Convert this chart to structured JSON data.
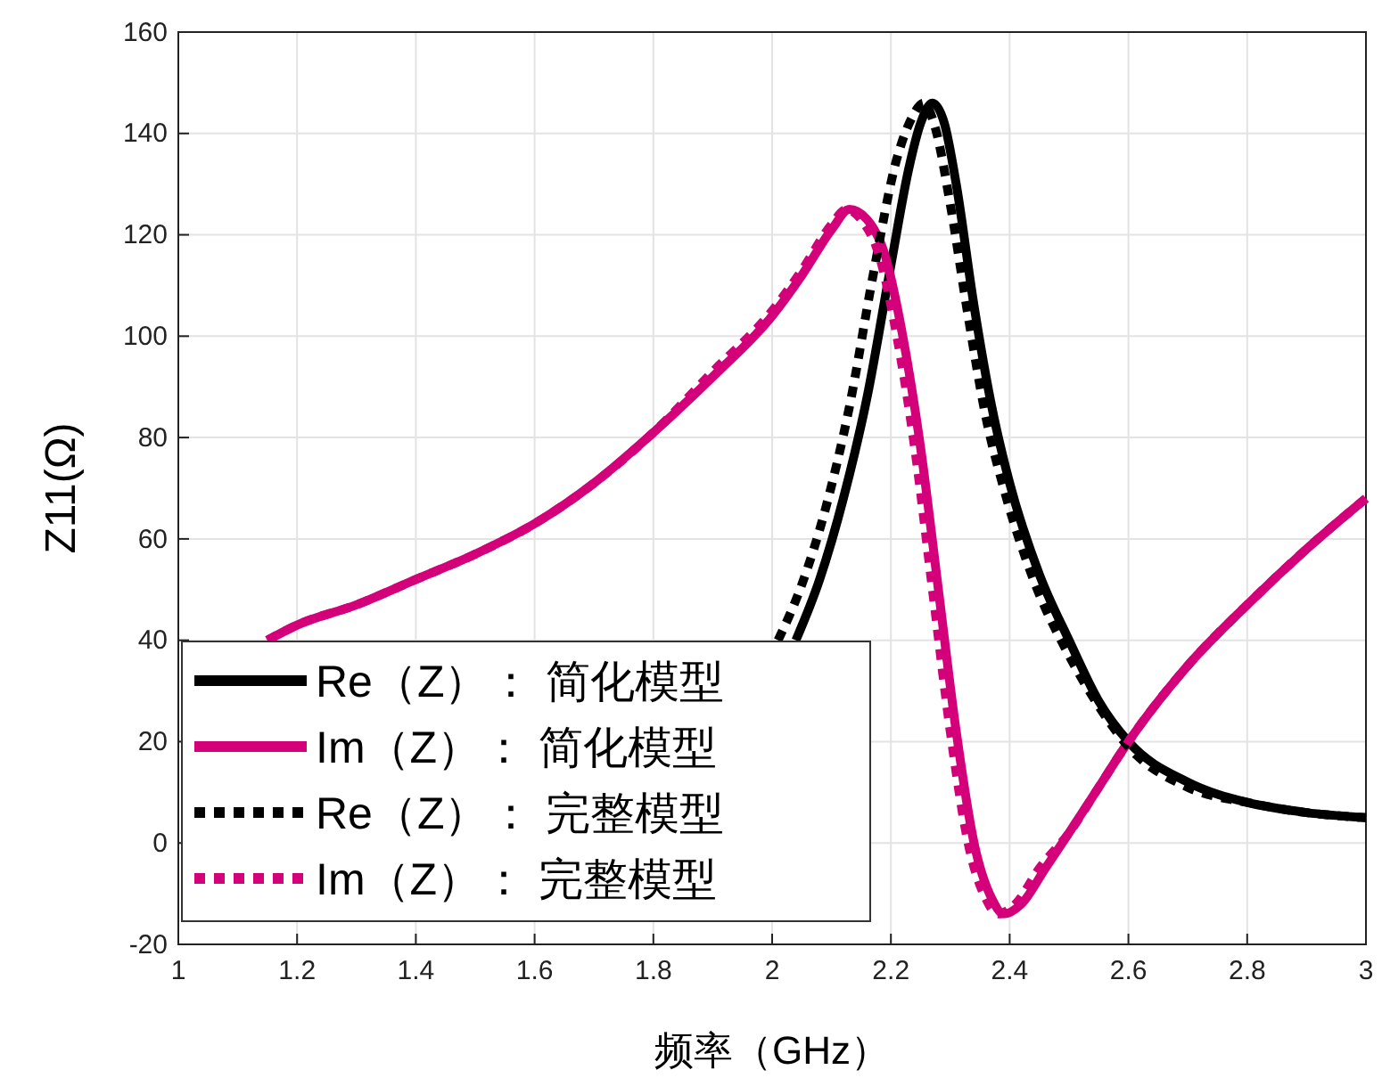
{
  "chart_data": {
    "type": "line",
    "xlabel": "频率（GHz）",
    "ylabel": "Z11(Ω)",
    "xlim": [
      1,
      3
    ],
    "xticks": [
      1,
      1.2,
      1.4,
      1.6,
      1.8,
      2,
      2.2,
      2.4,
      2.6,
      2.8,
      3
    ],
    "ylim": [
      -20,
      160
    ],
    "yticks": [
      -20,
      0,
      20,
      40,
      60,
      80,
      100,
      120,
      140,
      160
    ],
    "grid": true,
    "legend": "bottom left",
    "series": [
      {
        "name": "Re（Z）： 简化模型",
        "color": "#000000",
        "line_style": "solid",
        "x": [
          2.04,
          2.08,
          2.12,
          2.16,
          2.2,
          2.23,
          2.25,
          2.27,
          2.29,
          2.31,
          2.34,
          2.37,
          2.4,
          2.45,
          2.5,
          2.55,
          2.6,
          2.7,
          2.8,
          2.9,
          3.0
        ],
        "values": [
          40,
          52,
          68,
          88,
          114,
          133,
          142,
          146,
          142,
          130,
          106,
          86,
          71,
          53,
          40,
          28,
          20,
          12,
          8,
          6,
          5
        ]
      },
      {
        "name": "Im（Z）： 简化模型",
        "color": "#d4007a",
        "line_style": "solid",
        "x": [
          1.15,
          1.2,
          1.3,
          1.4,
          1.5,
          1.6,
          1.7,
          1.8,
          1.9,
          2.0,
          2.05,
          2.1,
          2.13,
          2.16,
          2.19,
          2.22,
          2.25,
          2.28,
          2.31,
          2.34,
          2.37,
          2.39,
          2.42,
          2.46,
          2.5,
          2.55,
          2.6,
          2.7,
          2.8,
          2.9,
          3.0
        ],
        "values": [
          40,
          43,
          47,
          52,
          57,
          63,
          71,
          81,
          92,
          104,
          112,
          121,
          125,
          123,
          116,
          100,
          78,
          50,
          22,
          0,
          -11,
          -14,
          -12,
          -5,
          2,
          11,
          20,
          35,
          47,
          58,
          68
        ]
      },
      {
        "name": "Re（Z）： 完整模型",
        "color": "#000000",
        "line_style": "dotted",
        "x": [
          2.01,
          2.05,
          2.09,
          2.13,
          2.17,
          2.21,
          2.235,
          2.255,
          2.275,
          2.3,
          2.33,
          2.36,
          2.39,
          2.44,
          2.5,
          2.55,
          2.6,
          2.7,
          2.8,
          2.9,
          3.0
        ],
        "values": [
          40,
          51,
          66,
          86,
          112,
          135,
          143,
          146,
          141,
          126,
          104,
          84,
          70,
          52,
          37,
          27,
          19,
          11,
          8,
          6,
          5
        ]
      },
      {
        "name": "Im（Z）： 完整模型",
        "color": "#d4007a",
        "line_style": "dotted",
        "x": [
          1.15,
          1.2,
          1.3,
          1.4,
          1.5,
          1.6,
          1.7,
          1.8,
          1.9,
          2.0,
          2.05,
          2.1,
          2.125,
          2.15,
          2.18,
          2.21,
          2.24,
          2.27,
          2.3,
          2.33,
          2.36,
          2.38,
          2.41,
          2.45,
          2.5,
          2.55,
          2.6,
          2.7,
          2.8,
          2.9,
          3.0
        ],
        "values": [
          40,
          43,
          47,
          52,
          57,
          63,
          71,
          81,
          93,
          105,
          113,
          122,
          125,
          123,
          116,
          100,
          78,
          50,
          22,
          0,
          -11,
          -14,
          -12,
          -5,
          2,
          11,
          20,
          35,
          47,
          58,
          68
        ]
      }
    ]
  }
}
